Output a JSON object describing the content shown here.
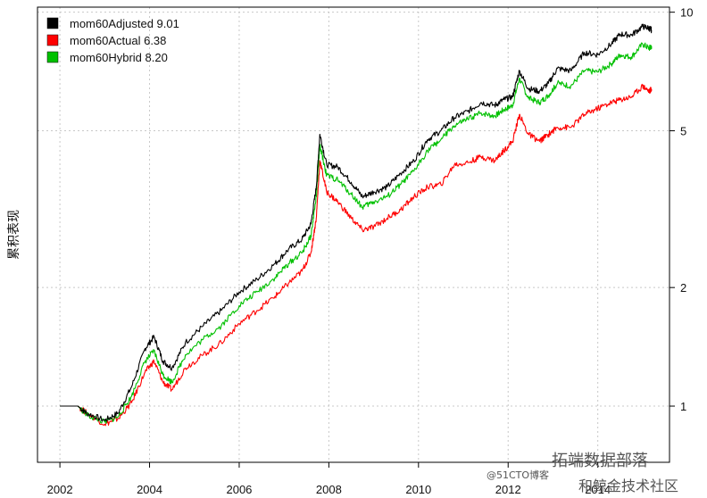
{
  "chart_data": {
    "type": "line",
    "ylabel": "累积表现",
    "xlabel": "",
    "x_ticks": [
      "2002",
      "2004",
      "2006",
      "2008",
      "2010",
      "2012",
      "2014"
    ],
    "y_ticks": [
      1,
      2,
      5,
      10
    ],
    "y_scale": "log",
    "ylim": [
      0.72,
      10.3
    ],
    "xlim": [
      2001.5,
      2015.6
    ],
    "grid": true,
    "legend_position": "top-left",
    "series": [
      {
        "name": "mom60Adjusted",
        "final": "9.01",
        "color": "#000000",
        "x": [
          2002.0,
          2002.4,
          2002.6,
          2003.0,
          2003.3,
          2003.6,
          2003.9,
          2004.1,
          2004.3,
          2004.5,
          2004.8,
          2005.2,
          2005.6,
          2006.0,
          2006.4,
          2006.8,
          2007.1,
          2007.4,
          2007.6,
          2007.72,
          2007.8,
          2007.95,
          2008.2,
          2008.5,
          2008.75,
          2009.0,
          2009.3,
          2009.6,
          2009.9,
          2010.2,
          2010.5,
          2010.8,
          2011.1,
          2011.4,
          2011.7,
          2011.9,
          2012.1,
          2012.25,
          2012.45,
          2012.7,
          2012.9,
          2013.1,
          2013.4,
          2013.7,
          2014.0,
          2014.3,
          2014.5,
          2014.75,
          2015.0,
          2015.15,
          2015.2
        ],
        "y": [
          1.0,
          1.0,
          0.96,
          0.92,
          0.96,
          1.12,
          1.4,
          1.5,
          1.3,
          1.25,
          1.45,
          1.6,
          1.75,
          1.95,
          2.1,
          2.3,
          2.5,
          2.65,
          2.9,
          3.6,
          4.9,
          4.1,
          4.05,
          3.7,
          3.4,
          3.5,
          3.6,
          3.9,
          4.2,
          4.75,
          5.0,
          5.4,
          5.6,
          5.9,
          5.8,
          6.0,
          6.1,
          7.1,
          6.4,
          6.3,
          6.6,
          7.2,
          7.1,
          7.9,
          7.8,
          8.3,
          8.8,
          8.75,
          9.2,
          9.1,
          9.01
        ]
      },
      {
        "name": "mom60Actual",
        "final": "6.38",
        "color": "#ff0000",
        "x": [
          2002.0,
          2002.4,
          2002.6,
          2003.0,
          2003.3,
          2003.6,
          2003.9,
          2004.1,
          2004.3,
          2004.5,
          2004.8,
          2005.2,
          2005.6,
          2006.0,
          2006.4,
          2006.8,
          2007.1,
          2007.4,
          2007.6,
          2007.72,
          2007.8,
          2007.95,
          2008.2,
          2008.5,
          2008.75,
          2009.0,
          2009.3,
          2009.6,
          2009.9,
          2010.2,
          2010.5,
          2010.8,
          2011.1,
          2011.4,
          2011.7,
          2011.9,
          2012.1,
          2012.25,
          2012.45,
          2012.7,
          2012.9,
          2013.1,
          2013.4,
          2013.7,
          2014.0,
          2014.3,
          2014.5,
          2014.75,
          2015.0,
          2015.15,
          2015.2
        ],
        "y": [
          1.0,
          1.0,
          0.96,
          0.9,
          0.93,
          1.02,
          1.22,
          1.3,
          1.15,
          1.1,
          1.25,
          1.35,
          1.45,
          1.62,
          1.75,
          1.9,
          2.05,
          2.2,
          2.45,
          3.0,
          4.2,
          3.5,
          3.3,
          3.0,
          2.8,
          2.85,
          3.0,
          3.15,
          3.4,
          3.6,
          3.65,
          4.1,
          4.15,
          4.3,
          4.2,
          4.45,
          4.7,
          5.5,
          4.9,
          4.7,
          4.9,
          5.1,
          5.1,
          5.5,
          5.7,
          5.9,
          6.0,
          6.1,
          6.5,
          6.3,
          6.38
        ]
      },
      {
        "name": "mom60Hybrid",
        "final": "8.20",
        "color": "#00c000",
        "x": [
          2002.0,
          2002.4,
          2002.6,
          2003.0,
          2003.3,
          2003.6,
          2003.9,
          2004.1,
          2004.3,
          2004.5,
          2004.8,
          2005.2,
          2005.6,
          2006.0,
          2006.4,
          2006.8,
          2007.1,
          2007.4,
          2007.6,
          2007.72,
          2007.8,
          2007.95,
          2008.2,
          2008.5,
          2008.75,
          2009.0,
          2009.3,
          2009.6,
          2009.9,
          2010.2,
          2010.5,
          2010.8,
          2011.1,
          2011.4,
          2011.7,
          2011.9,
          2012.1,
          2012.25,
          2012.45,
          2012.7,
          2012.9,
          2013.1,
          2013.4,
          2013.7,
          2014.0,
          2014.3,
          2014.5,
          2014.75,
          2015.0,
          2015.15,
          2015.2
        ],
        "y": [
          1.0,
          1.0,
          0.95,
          0.91,
          0.94,
          1.06,
          1.3,
          1.38,
          1.2,
          1.15,
          1.35,
          1.48,
          1.6,
          1.8,
          1.95,
          2.12,
          2.3,
          2.45,
          2.7,
          3.4,
          4.6,
          3.85,
          3.75,
          3.45,
          3.2,
          3.3,
          3.4,
          3.65,
          3.95,
          4.45,
          4.75,
          5.15,
          5.35,
          5.55,
          5.45,
          5.65,
          5.8,
          6.8,
          6.05,
          5.9,
          6.15,
          6.6,
          6.5,
          7.1,
          7.05,
          7.4,
          7.8,
          7.7,
          8.3,
          8.1,
          8.2
        ]
      }
    ]
  },
  "watermark": {
    "handle": "@51CTO博客",
    "brand_top": "拓端数据部落",
    "brand_bottom": "和鲸金技术社区"
  }
}
